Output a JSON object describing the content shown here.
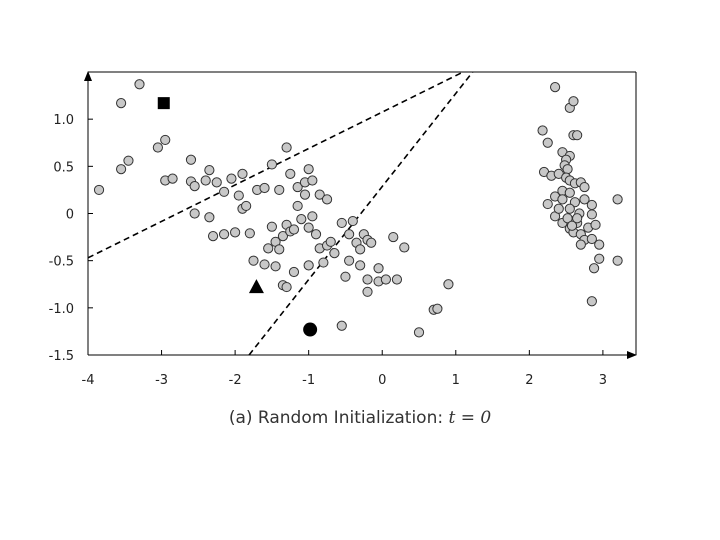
{
  "caption": {
    "prefix": "(a) Random Initialization: ",
    "math": "t = 0"
  },
  "chart_data": {
    "type": "scatter",
    "title": "",
    "xlabel": "",
    "ylabel": "",
    "xlim": [
      -4.0,
      3.45
    ],
    "ylim": [
      -1.5,
      1.5
    ],
    "x_ticks": [
      -4,
      -3,
      -2,
      -1,
      0,
      1,
      2,
      3
    ],
    "x_tick_labels": [
      "-4",
      "-3",
      "-2",
      "-1",
      "0",
      "1",
      "2",
      "3"
    ],
    "y_ticks": [
      1.0,
      0.5,
      0,
      -0.5,
      -1.0,
      -1.5
    ],
    "y_tick_labels": [
      "1.0",
      "0.5",
      "0",
      "-0.5",
      "-1.0",
      "-1.5"
    ],
    "grid": false,
    "colors": {
      "points": "#c8c8c8",
      "point_edge": "#333333",
      "centroids": "#000000",
      "lines": "#000000",
      "axes": "#000000"
    },
    "centroids": [
      {
        "shape": "square",
        "x": -2.97,
        "y": 1.17
      },
      {
        "shape": "triangle",
        "x": -1.71,
        "y": -0.78
      },
      {
        "shape": "circle",
        "x": -0.98,
        "y": -1.23
      }
    ],
    "boundaries": [
      {
        "style": "dashed",
        "x": [
          -4.0,
          1.1
        ],
        "y": [
          -0.47,
          1.5
        ]
      },
      {
        "style": "dashed",
        "x": [
          -1.81,
          1.23
        ],
        "y": [
          -1.5,
          1.5
        ]
      }
    ],
    "points": [
      [
        -3.85,
        0.25
      ],
      [
        -3.55,
        1.17
      ],
      [
        -3.3,
        1.37
      ],
      [
        -3.55,
        0.47
      ],
      [
        -3.45,
        0.56
      ],
      [
        -3.05,
        0.7
      ],
      [
        -2.95,
        0.78
      ],
      [
        -2.95,
        0.35
      ],
      [
        -2.85,
        0.37
      ],
      [
        -2.6,
        0.57
      ],
      [
        -2.6,
        0.34
      ],
      [
        -2.55,
        0.29
      ],
      [
        -2.4,
        0.35
      ],
      [
        -2.35,
        0.46
      ],
      [
        -2.25,
        0.33
      ],
      [
        -2.15,
        0.23
      ],
      [
        -2.05,
        0.37
      ],
      [
        -1.9,
        0.42
      ],
      [
        -1.95,
        0.19
      ],
      [
        -1.9,
        0.05
      ],
      [
        -1.7,
        0.25
      ],
      [
        -1.6,
        0.27
      ],
      [
        -1.5,
        0.52
      ],
      [
        -1.3,
        0.7
      ],
      [
        -1.25,
        0.42
      ],
      [
        -1.4,
        0.25
      ],
      [
        -1.15,
        0.28
      ],
      [
        -1.05,
        0.33
      ],
      [
        -1.0,
        0.47
      ],
      [
        -0.95,
        0.35
      ],
      [
        -0.85,
        0.2
      ],
      [
        -0.75,
        0.15
      ],
      [
        -2.55,
        0.0
      ],
      [
        -2.35,
        -0.04
      ],
      [
        -2.3,
        -0.24
      ],
      [
        -2.15,
        -0.22
      ],
      [
        -2.0,
        -0.2
      ],
      [
        -1.85,
        0.08
      ],
      [
        -1.8,
        -0.21
      ],
      [
        -1.75,
        -0.5
      ],
      [
        -1.6,
        -0.54
      ],
      [
        -1.55,
        -0.37
      ],
      [
        -1.5,
        -0.14
      ],
      [
        -1.45,
        -0.3
      ],
      [
        -1.45,
        -0.56
      ],
      [
        -1.4,
        -0.38
      ],
      [
        -1.35,
        -0.24
      ],
      [
        -1.3,
        -0.12
      ],
      [
        -1.25,
        -0.19
      ],
      [
        -1.35,
        -0.76
      ],
      [
        -1.3,
        -0.78
      ],
      [
        -1.2,
        -0.62
      ],
      [
        -1.2,
        -0.17
      ],
      [
        -1.1,
        -0.06
      ],
      [
        -1.15,
        0.08
      ],
      [
        -1.05,
        0.2
      ],
      [
        -1.0,
        -0.15
      ],
      [
        -0.95,
        -0.03
      ],
      [
        -0.9,
        -0.22
      ],
      [
        -0.85,
        -0.37
      ],
      [
        -0.8,
        -0.52
      ],
      [
        -0.75,
        -0.34
      ],
      [
        -0.65,
        -0.42
      ],
      [
        -0.7,
        -0.3
      ],
      [
        -0.55,
        -0.1
      ],
      [
        -0.5,
        -0.67
      ],
      [
        -0.45,
        -0.22
      ],
      [
        -0.4,
        -0.08
      ],
      [
        -0.35,
        -0.31
      ],
      [
        -0.3,
        -0.38
      ],
      [
        -0.3,
        -0.55
      ],
      [
        -0.25,
        -0.22
      ],
      [
        -0.2,
        -0.28
      ],
      [
        -0.15,
        -0.31
      ],
      [
        -0.2,
        -0.7
      ],
      [
        -0.2,
        -0.83
      ],
      [
        -0.05,
        -0.58
      ],
      [
        -0.05,
        -0.72
      ],
      [
        0.05,
        -0.7
      ],
      [
        0.15,
        -0.25
      ],
      [
        0.2,
        -0.7
      ],
      [
        0.3,
        -0.36
      ],
      [
        0.5,
        -1.26
      ],
      [
        0.7,
        -1.02
      ],
      [
        0.75,
        -1.01
      ],
      [
        0.9,
        -0.75
      ],
      [
        -0.55,
        -1.19
      ],
      [
        -0.45,
        -0.5
      ],
      [
        -1.0,
        -0.55
      ],
      [
        2.18,
        0.88
      ],
      [
        2.35,
        1.34
      ],
      [
        2.55,
        1.12
      ],
      [
        2.6,
        1.19
      ],
      [
        2.6,
        0.83
      ],
      [
        2.65,
        0.83
      ],
      [
        2.25,
        0.75
      ],
      [
        2.45,
        0.65
      ],
      [
        2.55,
        0.61
      ],
      [
        2.5,
        0.57
      ],
      [
        2.48,
        0.51
      ],
      [
        2.52,
        0.47
      ],
      [
        2.2,
        0.44
      ],
      [
        2.3,
        0.4
      ],
      [
        2.4,
        0.42
      ],
      [
        2.5,
        0.38
      ],
      [
        2.55,
        0.35
      ],
      [
        2.62,
        0.32
      ],
      [
        2.7,
        0.33
      ],
      [
        2.75,
        0.28
      ],
      [
        2.45,
        0.24
      ],
      [
        2.55,
        0.22
      ],
      [
        2.35,
        0.18
      ],
      [
        2.45,
        0.15
      ],
      [
        2.62,
        0.12
      ],
      [
        2.75,
        0.15
      ],
      [
        2.85,
        0.09
      ],
      [
        2.25,
        0.1
      ],
      [
        2.55,
        0.05
      ],
      [
        2.68,
        0.0
      ],
      [
        2.85,
        -0.01
      ],
      [
        3.2,
        0.15
      ],
      [
        2.35,
        -0.03
      ],
      [
        2.45,
        -0.1
      ],
      [
        2.55,
        -0.16
      ],
      [
        2.6,
        -0.2
      ],
      [
        2.7,
        -0.22
      ],
      [
        2.8,
        -0.15
      ],
      [
        2.9,
        -0.12
      ],
      [
        2.65,
        -0.1
      ],
      [
        2.52,
        -0.05
      ],
      [
        2.58,
        -0.13
      ],
      [
        2.75,
        -0.28
      ],
      [
        2.85,
        -0.27
      ],
      [
        2.95,
        -0.33
      ],
      [
        2.7,
        -0.33
      ],
      [
        2.95,
        -0.48
      ],
      [
        2.88,
        -0.58
      ],
      [
        3.2,
        -0.5
      ],
      [
        2.85,
        -0.93
      ],
      [
        2.4,
        0.05
      ],
      [
        2.65,
        -0.05
      ]
    ]
  }
}
